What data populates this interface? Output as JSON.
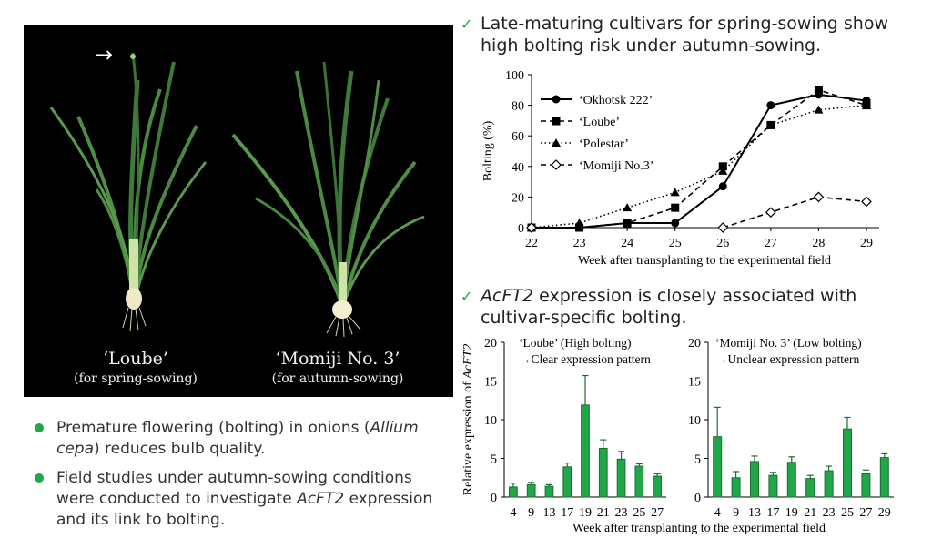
{
  "photo": {
    "left_label": "‘Loube’",
    "left_sub": "(for spring-sowing)",
    "right_label": "‘Momiji No. 3’",
    "right_sub": "(for autumn-sowing)",
    "arrow": "→"
  },
  "bullets": [
    {
      "pre": "Premature flowering (bolting) in onions",
      "italic": "Allium cepa",
      "post": ") reduces bulb quality."
    },
    {
      "pre": "Field studies under autumn-sowing conditions were conducted to investigate",
      "italic": "AcFT2",
      "post": " expression and its link to bolting."
    }
  ],
  "headings": {
    "top": {
      "check": "✓",
      "line1": "Late-maturing cultivars for spring-sowing show",
      "line2": "high bolting risk under autumn-sowing."
    },
    "bottom": {
      "check": "✓",
      "italic": "AcFT2",
      "line1_rest": " expression is closely associated with",
      "line2": "cultivar-specific bolting."
    }
  },
  "colors": {
    "accent": "#22a64a",
    "bar_fill": "#22a64a",
    "bar_stroke": "#1a6e31"
  },
  "chart_data": [
    {
      "type": "line",
      "xlabel": "Week after transplanting to the experimental field",
      "ylabel": "Bolting (%)",
      "x": [
        22,
        23,
        24,
        25,
        26,
        27,
        28,
        29
      ],
      "xlim": [
        22,
        29
      ],
      "ylim": [
        0,
        100
      ],
      "yticks": [
        0,
        20,
        40,
        60,
        80,
        100
      ],
      "legend_position": "top-left",
      "series": [
        {
          "name": "‘Okhotsk 222’",
          "marker": "circle",
          "line": "solid",
          "values": [
            0,
            0,
            3,
            3,
            27,
            80,
            87,
            83
          ]
        },
        {
          "name": "‘Loube’",
          "marker": "square",
          "line": "dashed",
          "values": [
            0,
            0,
            3,
            13,
            40,
            67,
            90,
            80
          ]
        },
        {
          "name": "‘Polestar’",
          "marker": "triangle",
          "line": "dotted",
          "values": [
            0,
            3,
            13,
            23,
            37,
            67,
            77,
            80
          ]
        },
        {
          "name": "‘Momiji No.3’",
          "marker": "open-diamond",
          "line": "dashed",
          "values": [
            0,
            0,
            0,
            0,
            0,
            10,
            20,
            17
          ]
        }
      ]
    },
    {
      "type": "bar",
      "ylabel_pre": "Relative expression of ",
      "ylabel_italic": "AcFT2",
      "ylim": [
        0,
        20
      ],
      "yticks": [
        0,
        5,
        10,
        15,
        20
      ],
      "title": "‘Loube’ (High bolting)",
      "subtitle": "→Clear expression pattern",
      "categories": [
        "4",
        "9",
        "13",
        "17",
        "19",
        "21",
        "23",
        "25",
        "27"
      ],
      "values": [
        1.3,
        1.6,
        1.4,
        3.9,
        11.9,
        6.3,
        4.9,
        4.0,
        2.7
      ],
      "errors": [
        0.5,
        0.3,
        0.2,
        0.5,
        3.8,
        1.1,
        1.0,
        0.3,
        0.3
      ]
    },
    {
      "type": "bar",
      "ylim": [
        0,
        20
      ],
      "yticks": [
        0,
        5,
        10,
        15,
        20
      ],
      "title": "‘Momiji No. 3’ (Low bolting)",
      "subtitle": "→Unclear expression pattern",
      "categories": [
        "4",
        "9",
        "13",
        "17",
        "19",
        "21",
        "23",
        "25",
        "27",
        "29"
      ],
      "values": [
        7.8,
        2.5,
        4.6,
        2.8,
        4.5,
        2.4,
        3.4,
        8.8,
        3.0,
        5.1
      ],
      "errors": [
        3.8,
        0.8,
        0.7,
        0.4,
        0.7,
        0.4,
        0.6,
        1.5,
        0.5,
        0.5
      ],
      "xlabel": "Week after transplanting to the experimental field"
    }
  ]
}
